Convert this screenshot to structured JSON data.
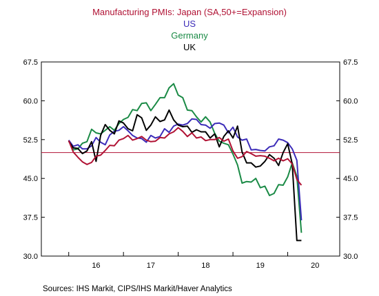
{
  "chart_data": {
    "type": "line",
    "title_lines": [
      {
        "text": "Manufacturing PMIs: Japan (SA,50+=Expansion)",
        "color": "#b01133"
      },
      {
        "text": "US",
        "color": "#3b2bb8"
      },
      {
        "text": "Germany",
        "color": "#1a8a45"
      },
      {
        "text": "UK",
        "color": "#000000"
      }
    ],
    "source": "Sources:  IHS Markit, CIPS/IHS Markit/Haver Analytics",
    "x_ticks": [
      {
        "value": 2016.5,
        "label": "16"
      },
      {
        "value": 2017.5,
        "label": "17"
      },
      {
        "value": 2018.5,
        "label": "18"
      },
      {
        "value": 2019.5,
        "label": "19"
      },
      {
        "value": 2020.5,
        "label": "20"
      }
    ],
    "xlim": [
      2015.5,
      2020.95
    ],
    "ylim": [
      30.0,
      67.5
    ],
    "y_ticks": [
      "30.0",
      "37.5",
      "45.0",
      "52.5",
      "60.0",
      "67.5"
    ],
    "reference_line": {
      "y": 50,
      "color": "#b01133"
    },
    "grid": false,
    "series": [
      {
        "color": "#1a8a45",
        "x": [
          2016.0,
          2016.083,
          2016.167,
          2016.25,
          2016.333,
          2016.417,
          2016.5,
          2016.583,
          2016.667,
          2016.75,
          2016.833,
          2016.917,
          2017.0,
          2017.083,
          2017.167,
          2017.25,
          2017.333,
          2017.417,
          2017.5,
          2017.583,
          2017.667,
          2017.75,
          2017.833,
          2017.917,
          2018.0,
          2018.083,
          2018.167,
          2018.25,
          2018.333,
          2018.417,
          2018.5,
          2018.583,
          2018.667,
          2018.75,
          2018.833,
          2018.917,
          2019.0,
          2019.083,
          2019.167,
          2019.25,
          2019.333,
          2019.417,
          2019.5,
          2019.583,
          2019.667,
          2019.75,
          2019.833,
          2019.917,
          2020.0,
          2020.083,
          2020.167,
          2020.25
        ],
        "values": [
          52.3,
          50.5,
          50.7,
          51.8,
          52.1,
          54.5,
          53.8,
          53.6,
          54.3,
          55.0,
          54.3,
          55.6,
          56.4,
          56.8,
          58.3,
          58.1,
          59.5,
          59.6,
          58.1,
          59.3,
          60.6,
          60.6,
          62.5,
          63.3,
          61.1,
          60.6,
          58.2,
          58.1,
          56.9,
          55.9,
          56.9,
          55.9,
          53.7,
          52.2,
          51.8,
          51.5,
          49.7,
          47.6,
          44.1,
          44.4,
          44.3,
          45.0,
          43.2,
          43.5,
          41.7,
          42.1,
          43.8,
          43.7,
          45.3,
          48.0,
          45.4,
          34.5
        ]
      },
      {
        "color": "#3b2bb8",
        "x": [
          2016.0,
          2016.083,
          2016.167,
          2016.25,
          2016.333,
          2016.417,
          2016.5,
          2016.583,
          2016.667,
          2016.75,
          2016.833,
          2016.917,
          2017.0,
          2017.083,
          2017.167,
          2017.25,
          2017.333,
          2017.417,
          2017.5,
          2017.583,
          2017.667,
          2017.75,
          2017.833,
          2017.917,
          2018.0,
          2018.083,
          2018.167,
          2018.25,
          2018.333,
          2018.417,
          2018.5,
          2018.583,
          2018.667,
          2018.75,
          2018.833,
          2018.917,
          2019.0,
          2019.083,
          2019.167,
          2019.25,
          2019.333,
          2019.417,
          2019.5,
          2019.583,
          2019.667,
          2019.75,
          2019.833,
          2019.917,
          2020.0,
          2020.083,
          2020.167,
          2020.25
        ],
        "values": [
          52.4,
          51.2,
          51.5,
          50.7,
          50.7,
          51.3,
          52.9,
          52.0,
          51.5,
          53.4,
          54.1,
          54.3,
          55.0,
          54.2,
          53.3,
          52.8,
          52.7,
          52.0,
          53.3,
          52.8,
          53.1,
          54.6,
          53.9,
          55.1,
          55.5,
          55.3,
          55.6,
          56.5,
          56.4,
          55.4,
          55.3,
          54.7,
          55.6,
          55.7,
          55.3,
          53.8,
          54.9,
          53.0,
          52.4,
          52.6,
          50.5,
          50.6,
          50.4,
          50.3,
          51.1,
          51.3,
          52.6,
          52.4,
          51.9,
          50.7,
          48.5,
          36.9
        ]
      },
      {
        "color": "#000000",
        "x": [
          2016.0,
          2016.083,
          2016.167,
          2016.25,
          2016.333,
          2016.417,
          2016.5,
          2016.583,
          2016.667,
          2016.75,
          2016.833,
          2016.917,
          2017.0,
          2017.083,
          2017.167,
          2017.25,
          2017.333,
          2017.417,
          2017.5,
          2017.583,
          2017.667,
          2017.75,
          2017.833,
          2017.917,
          2018.0,
          2018.083,
          2018.167,
          2018.25,
          2018.333,
          2018.417,
          2018.5,
          2018.583,
          2018.667,
          2018.75,
          2018.833,
          2018.917,
          2019.0,
          2019.083,
          2019.167,
          2019.25,
          2019.333,
          2019.417,
          2019.5,
          2019.583,
          2019.667,
          2019.75,
          2019.833,
          2019.917,
          2020.0,
          2020.083,
          2020.167,
          2020.25
        ],
        "values": [
          52.2,
          50.9,
          50.8,
          49.8,
          50.3,
          52.1,
          48.3,
          53.3,
          55.4,
          54.3,
          53.6,
          56.1,
          55.7,
          54.6,
          54.2,
          57.3,
          56.7,
          54.3,
          55.3,
          56.9,
          56.0,
          56.3,
          58.2,
          56.3,
          55.3,
          55.0,
          55.1,
          53.9,
          54.4,
          54.0,
          54.0,
          52.8,
          53.6,
          51.1,
          53.1,
          54.2,
          52.8,
          55.1,
          50.1,
          48.0,
          48.0,
          47.2,
          47.4,
          48.3,
          49.6,
          48.9,
          47.5,
          50.0,
          51.7,
          47.8,
          33.0,
          33.0
        ]
      },
      {
        "color": "#b01133",
        "x": [
          2016.0,
          2016.083,
          2016.167,
          2016.25,
          2016.333,
          2016.417,
          2016.5,
          2016.583,
          2016.667,
          2016.75,
          2016.833,
          2016.917,
          2017.0,
          2017.083,
          2017.167,
          2017.25,
          2017.333,
          2017.417,
          2017.5,
          2017.583,
          2017.667,
          2017.75,
          2017.833,
          2017.917,
          2018.0,
          2018.083,
          2018.167,
          2018.25,
          2018.333,
          2018.417,
          2018.5,
          2018.583,
          2018.667,
          2018.75,
          2018.833,
          2018.917,
          2019.0,
          2019.083,
          2019.167,
          2019.25,
          2019.333,
          2019.417,
          2019.5,
          2019.583,
          2019.667,
          2019.75,
          2019.833,
          2019.917,
          2020.0,
          2020.083,
          2020.167,
          2020.25
        ],
        "values": [
          52.3,
          50.1,
          49.1,
          48.2,
          47.7,
          48.1,
          49.3,
          49.5,
          50.4,
          51.4,
          51.3,
          52.4,
          52.7,
          53.3,
          52.4,
          52.7,
          53.1,
          52.4,
          52.1,
          52.2,
          52.9,
          52.8,
          53.6,
          54.0,
          54.8,
          54.1,
          53.1,
          53.8,
          52.8,
          53.0,
          52.3,
          52.5,
          52.5,
          52.9,
          52.2,
          52.6,
          50.3,
          48.9,
          49.2,
          50.2,
          49.8,
          49.3,
          49.4,
          49.3,
          48.9,
          48.4,
          48.9,
          48.4,
          48.8,
          47.8,
          44.8,
          43.7
        ]
      }
    ]
  }
}
